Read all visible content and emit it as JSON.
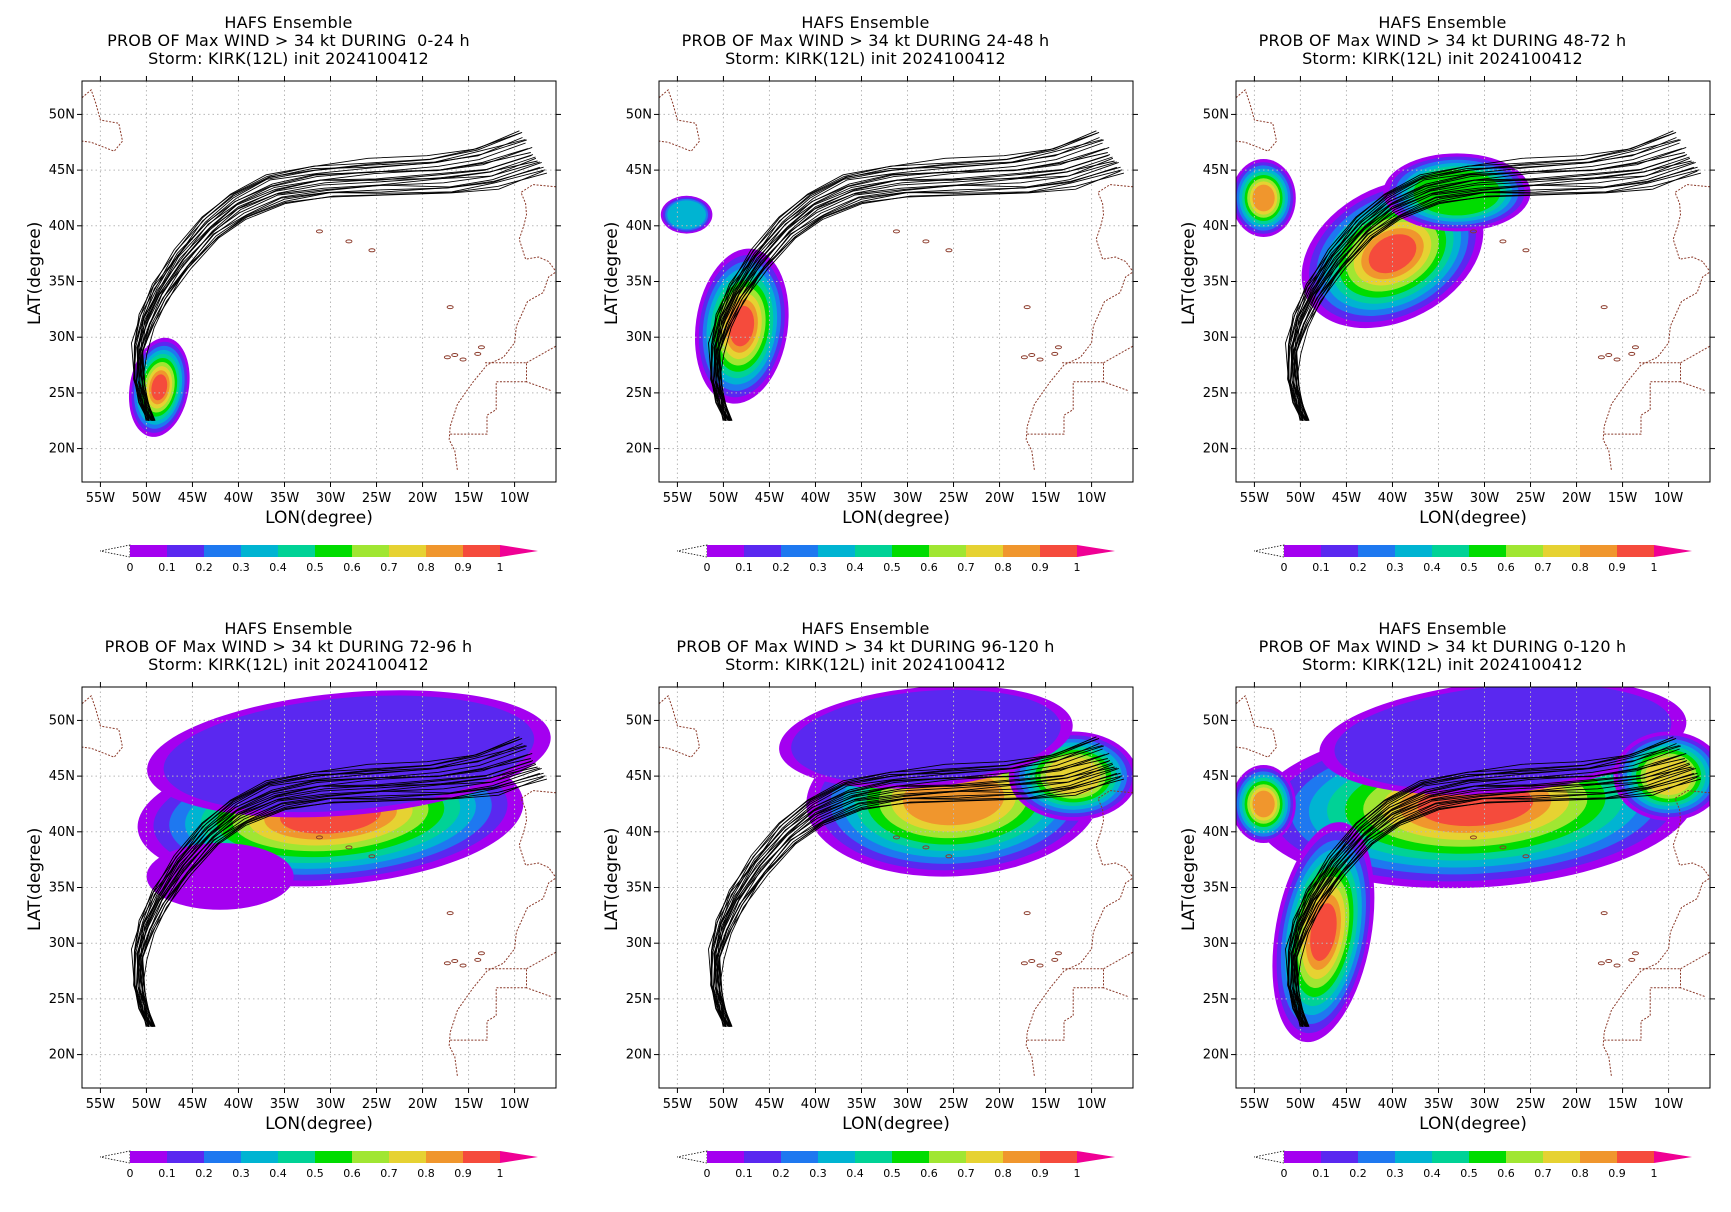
{
  "colors": {
    "track": "#000000",
    "coast": "#8b3a2a",
    "grid": "#b8b8b8",
    "colorbar": [
      "#ffffff",
      "#a400f0",
      "#5a28f0",
      "#1e78f0",
      "#00b4d2",
      "#00d296",
      "#00dc00",
      "#a0e632",
      "#e6d232",
      "#f0962d",
      "#f54b3c",
      "#f00094"
    ]
  },
  "colorbar": {
    "ticks": [
      "0",
      "0.1",
      "0.2",
      "0.3",
      "0.4",
      "0.5",
      "0.6",
      "0.7",
      "0.8",
      "0.9",
      "1"
    ]
  },
  "axes": {
    "xlabel": "LON(degree)",
    "ylabel": "LAT(degree)",
    "xticks": [
      "55W",
      "50W",
      "45W",
      "40W",
      "35W",
      "30W",
      "25W",
      "20W",
      "15W",
      "10W"
    ],
    "yticks": [
      "20N",
      "25N",
      "30N",
      "35N",
      "40N",
      "45N",
      "50N"
    ]
  },
  "panels": [
    {
      "line1": "HAFS Ensemble",
      "line2": "PROB OF Max WIND > 34 kt DURING  0-24 h",
      "line3": "Storm: KIRK(12L) init 2024100412"
    },
    {
      "line1": "HAFS Ensemble",
      "line2": "PROB OF Max WIND > 34 kt DURING 24-48 h",
      "line3": "Storm: KIRK(12L) init 2024100412"
    },
    {
      "line1": "HAFS Ensemble",
      "line2": "PROB OF Max WIND > 34 kt DURING 48-72 h",
      "line3": "Storm: KIRK(12L) init 2024100412"
    },
    {
      "line1": "HAFS Ensemble",
      "line2": "PROB OF Max WIND > 34 kt DURING 72-96 h",
      "line3": "Storm: KIRK(12L) init 2024100412"
    },
    {
      "line1": "HAFS Ensemble",
      "line2": "PROB OF Max WIND > 34 kt DURING 96-120 h",
      "line3": "Storm: KIRK(12L) init 2024100412"
    },
    {
      "line1": "HAFS Ensemble",
      "line2": "PROB OF Max WIND > 34 kt DURING 0-120 h",
      "line3": "Storm: KIRK(12L) init 2024100412"
    }
  ],
  "map_data": {
    "lon_range": [
      -57,
      -5.5
    ],
    "lat_range": [
      17,
      53
    ],
    "mean_track": [
      [
        -49.5,
        22.5
      ],
      [
        -50.2,
        24
      ],
      [
        -50.8,
        26
      ],
      [
        -50.8,
        29
      ],
      [
        -50,
        31.5
      ],
      [
        -48.5,
        34
      ],
      [
        -46,
        37
      ],
      [
        -43,
        39.8
      ],
      [
        -40,
        41.8
      ],
      [
        -36,
        43.3
      ],
      [
        -31,
        44
      ],
      [
        -25,
        44.3
      ],
      [
        -18,
        44.6
      ],
      [
        -13,
        45.2
      ],
      [
        -8,
        46.5
      ]
    ],
    "coast_canada": [
      [
        -57,
        51.5
      ],
      [
        -56,
        52.2
      ],
      [
        -55.5,
        51
      ],
      [
        -55,
        49.5
      ],
      [
        -53,
        49.2
      ],
      [
        -52.6,
        47.6
      ],
      [
        -53.5,
        46.7
      ],
      [
        -56,
        47.5
      ],
      [
        -57,
        47.6
      ]
    ],
    "coast_iberia": [
      [
        -5.5,
        43.5
      ],
      [
        -8,
        43.7
      ],
      [
        -9.3,
        43
      ],
      [
        -8.8,
        42
      ],
      [
        -8.7,
        41
      ],
      [
        -9,
        40
      ],
      [
        -9.5,
        38.8
      ],
      [
        -8.8,
        37
      ],
      [
        -7.4,
        37.2
      ],
      [
        -6.3,
        36.8
      ],
      [
        -5.6,
        36
      ]
    ],
    "coast_africa": [
      [
        -5.6,
        35.8
      ],
      [
        -6.3,
        35.4
      ],
      [
        -6.9,
        34
      ],
      [
        -8.6,
        33.2
      ],
      [
        -9.8,
        31
      ],
      [
        -10,
        29.5
      ],
      [
        -11.2,
        28.2
      ],
      [
        -13,
        27.5
      ],
      [
        -14.5,
        26
      ],
      [
        -16.2,
        24
      ],
      [
        -17,
        22
      ],
      [
        -17.1,
        20.8
      ],
      [
        -16.5,
        19.8
      ],
      [
        -16.2,
        18
      ]
    ],
    "border_lines": [
      [
        [
          -13.2,
          27.7
        ],
        [
          -8.7,
          27.7
        ],
        [
          -8.7,
          26
        ],
        [
          -6,
          25.2
        ]
      ],
      [
        [
          -17,
          21.3
        ],
        [
          -13,
          21.3
        ],
        [
          -13,
          23
        ],
        [
          -12,
          23.5
        ],
        [
          -12,
          26
        ],
        [
          -8.7,
          26
        ]
      ],
      [
        [
          -8.7,
          27.7
        ],
        [
          -5.5,
          29.2
        ]
      ]
    ],
    "islands": [
      [
        -17.3,
        28.2
      ],
      [
        -16.5,
        28.4
      ],
      [
        -15.6,
        28.0
      ],
      [
        -14,
        28.5
      ],
      [
        -13.6,
        29.1
      ],
      [
        -17,
        32.7
      ],
      [
        -25.5,
        37.8
      ],
      [
        -28,
        38.6
      ],
      [
        -31.2,
        39.5
      ]
    ],
    "prob_blobs": [
      [
        {
          "lon": -48.6,
          "lat": 25.5,
          "rlon": 3.2,
          "rlat": 4.5,
          "rot": 10
        }
      ],
      [
        {
          "lon": -48.0,
          "lat": 31.0,
          "rlon": 5.0,
          "rlat": 7.0,
          "rot": 8
        },
        {
          "lon": -54.0,
          "lat": 41.0,
          "rlon": 2.8,
          "rlat": 1.7,
          "rot": 0,
          "scale": 0.38
        }
      ],
      [
        {
          "lon": -40.0,
          "lat": 37.5,
          "rlon": 10.5,
          "rlat": 6.0,
          "rot": -28
        },
        {
          "lon": -54.0,
          "lat": 42.5,
          "rlon": 3.5,
          "rlat": 3.5,
          "rot": 0,
          "scale": 0.85
        },
        {
          "lon": -33.0,
          "lat": 43.0,
          "rlon": 8.0,
          "rlat": 3.5,
          "rot": 0,
          "scale": 0.55
        }
      ],
      [
        {
          "lon": -30.0,
          "lat": 41.5,
          "rlon": 21.0,
          "rlat": 6.3,
          "rot": -4
        },
        {
          "lon": -28.0,
          "lat": 47.0,
          "rlon": 22.0,
          "rlat": 5.5,
          "rot": -5,
          "scale": 0.15
        },
        {
          "lon": -42.0,
          "lat": 36.0,
          "rlon": 8.0,
          "rlat": 3.0,
          "rot": 0,
          "scale": 0.12
        }
      ],
      [
        {
          "lon": -25.0,
          "lat": 43.0,
          "rlon": 16.0,
          "rlat": 7.0,
          "rot": -3,
          "scale": 0.88
        },
        {
          "lon": -12.0,
          "lat": 45.0,
          "rlon": 7.0,
          "rlat": 4.0,
          "rot": 0,
          "scale": 0.75
        },
        {
          "lon": -28.0,
          "lat": 48.5,
          "rlon": 16.0,
          "rlat": 4.5,
          "rot": -5,
          "scale": 0.18
        }
      ],
      [
        {
          "lon": -31.0,
          "lat": 42.5,
          "rlon": 24.0,
          "rlat": 7.5,
          "rot": -3
        },
        {
          "lon": -47.5,
          "lat": 31.0,
          "rlon": 5.2,
          "rlat": 10.0,
          "rot": 10
        },
        {
          "lon": -54.0,
          "lat": 42.5,
          "rlon": 3.5,
          "rlat": 3.5,
          "rot": 0,
          "scale": 0.85
        },
        {
          "lon": -28.0,
          "lat": 48.5,
          "rlon": 20.0,
          "rlat": 5.0,
          "rot": -5,
          "scale": 0.2
        },
        {
          "lon": -10.0,
          "lat": 45.0,
          "rlon": 6.0,
          "rlat": 4.0,
          "rot": 0,
          "scale": 0.75
        }
      ]
    ]
  }
}
